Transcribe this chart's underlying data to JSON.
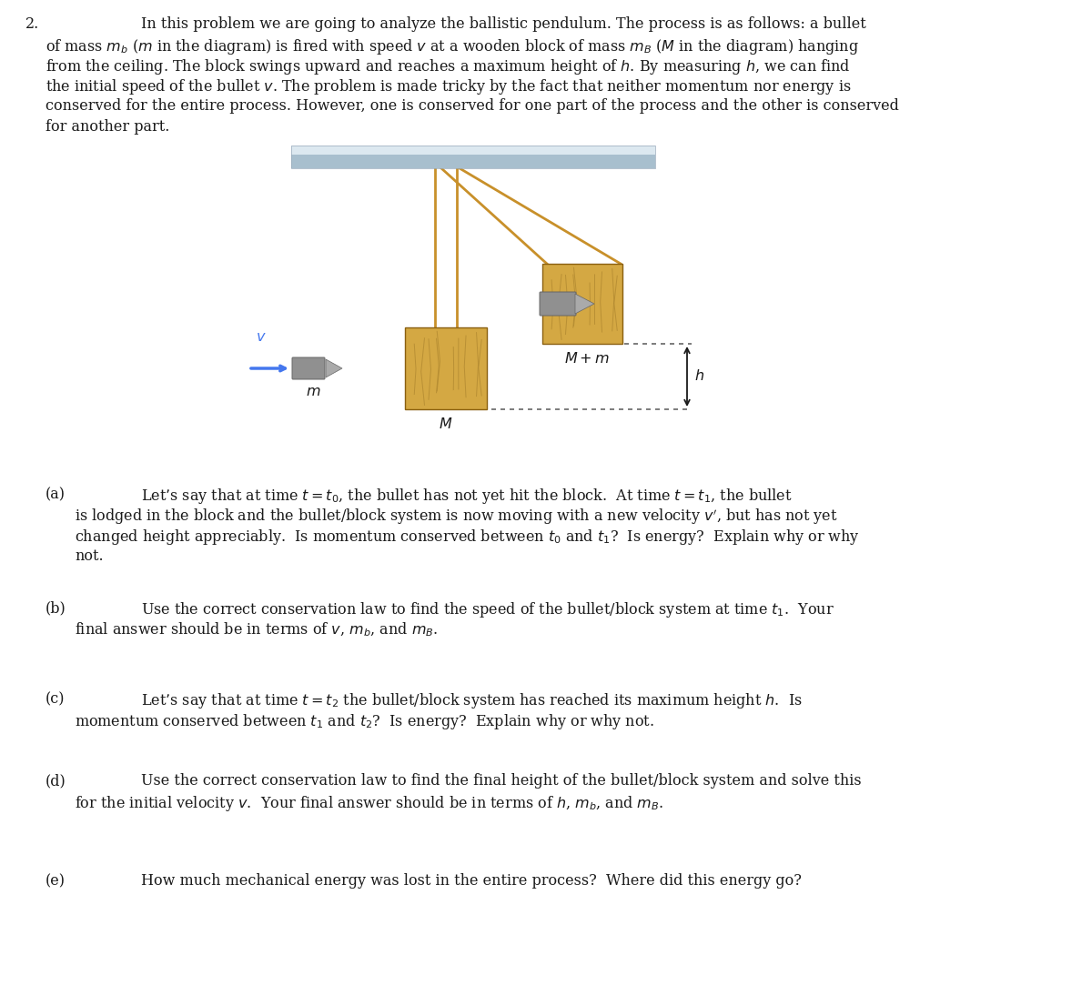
{
  "bg_color": "#ffffff",
  "text_color": "#1a1a1a",
  "ceiling_color_top": "#d0dce8",
  "ceiling_color_bot": "#a8bcc8",
  "rope_color": "#c8902a",
  "wood_color": "#d4a843",
  "wood_grain_color": "#b08830",
  "wood_edge_color": "#8a6010",
  "bullet_color": "#909090",
  "bullet_edge": "#666666",
  "arrow_color": "#4477ee",
  "dot_color": "#666666",
  "intro_line0": "In this problem we are going to analyze the ballistic pendulum. The process is as follows: a bullet",
  "intro_line1": "of mass $m_b$ ($m$ in the diagram) is fired with speed $v$ at a wooden block of mass $m_B$ ($M$ in the diagram) hanging",
  "intro_line2": "from the ceiling. The block swings upward and reaches a maximum height of $h$. By measuring $h$, we can find",
  "intro_line3": "the initial speed of the bullet $v$. The problem is made tricky by the fact that neither momentum nor energy is",
  "intro_line4": "conserved for the entire process. However, one is conserved for one part of the process and the other is conserved",
  "intro_line5": "for another part.",
  "pa_line0": "Let’s say that at time $t = t_0$, the bullet has not yet hit the block.  At time $t = t_1$, the bullet",
  "pa_line1": "is lodged in the block and the bullet/block system is now moving with a new velocity $v'$, but has not yet",
  "pa_line2": "changed height appreciably.  Is momentum conserved between $t_0$ and $t_1$?  Is energy?  Explain why or why",
  "pa_line3": "not.",
  "pb_line0": "Use the correct conservation law to find the speed of the bullet/block system at time $t_1$.  Your",
  "pb_line1": "final answer should be in terms of $v$, $m_b$, and $m_B$.",
  "pc_line0": "Let’s say that at time $t = t_2$ the bullet/block system has reached its maximum height $h$.  Is",
  "pc_line1": "momentum conserved between $t_1$ and $t_2$?  Is energy?  Explain why or why not.",
  "pd_line0": "Use the correct conservation law to find the final height of the bullet/block system and solve this",
  "pd_line1": "for the initial velocity $v$.  Your final answer should be in terms of $h$, $m_b$, and $m_B$.",
  "pe_line0": "How much mechanical energy was lost in the entire process?  Where did this energy go?"
}
